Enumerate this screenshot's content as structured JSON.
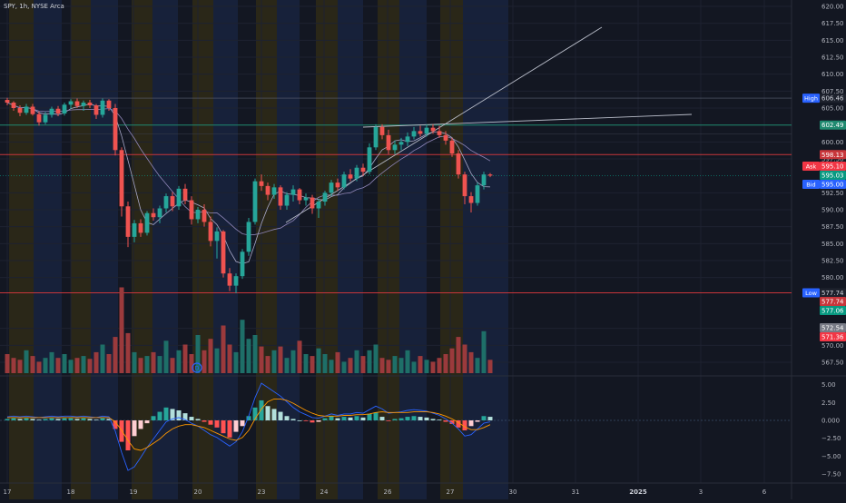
{
  "header": {
    "title": "SPY, 1h, NYSE Arca"
  },
  "colors": {
    "background": "#131722",
    "up": "#26a69a",
    "down": "#ef5350",
    "session_pre": "#2a2718",
    "session_post": "#17213a",
    "ma_fast": "#a8a8c8",
    "ma_slow": "#8f86b8",
    "macd_line": "#2962ff",
    "signal_line": "#ff9800",
    "level_green": "#1f8a70",
    "level_red": "#c8363b"
  },
  "price_axis": {
    "ticks": [
      "620.00",
      "617.50",
      "615.00",
      "612.50",
      "610.00",
      "607.50",
      "605.00",
      "600.00",
      "597.50",
      "592.50",
      "590.00",
      "587.50",
      "585.00",
      "582.50",
      "580.00",
      "572.50",
      "570.00",
      "567.50"
    ]
  },
  "macd_axis": {
    "ticks": [
      "5.00",
      "2.50",
      "0.000",
      "−2.50",
      "−5.00",
      "−7.50"
    ]
  },
  "time_axis": {
    "labels": [
      "17",
      "18",
      "19",
      "20",
      "23",
      "24",
      "26",
      "27",
      "30",
      "31",
      "2025",
      "3",
      "6"
    ]
  },
  "price_labels": [
    {
      "tag": "High",
      "value": "606.46",
      "bg": "#1e222d",
      "color": "#d1d4dc",
      "tag_bg": "#2962ff"
    },
    {
      "tag": "",
      "value": "602.49",
      "bg": "#1f8a70",
      "color": "#ffffff"
    },
    {
      "tag": "",
      "value": "598.13",
      "bg": "#c8363b",
      "color": "#ffffff"
    },
    {
      "tag": "Ask",
      "value": "595.10",
      "bg": "#f23645",
      "color": "#ffffff",
      "tag_bg": "#f23645"
    },
    {
      "tag": "",
      "value": "595.03",
      "bg": "#089981",
      "color": "#ffffff"
    },
    {
      "tag": "Bid",
      "value": "595.00",
      "bg": "#2962ff",
      "color": "#ffffff",
      "tag_bg": "#2962ff"
    },
    {
      "tag": "Low",
      "value": "577.74",
      "bg": "#1e222d",
      "color": "#d1d4dc",
      "tag_bg": "#2962ff"
    },
    {
      "tag": "",
      "value": "577.74",
      "bg": "#c8363b",
      "color": "#ffffff"
    },
    {
      "tag": "",
      "value": "577.06",
      "bg": "#089981",
      "color": "#ffffff"
    },
    {
      "tag": "",
      "value": "572.54",
      "bg": "#787b86",
      "color": "#ffffff"
    },
    {
      "tag": "",
      "value": "571.36",
      "bg": "#f23645",
      "color": "#ffffff"
    }
  ],
  "event_marker": "D",
  "chart_data": {
    "type": "candlestick",
    "symbol": "SPY",
    "interval": "1h",
    "exchange": "NYSE Arca",
    "ylim": [
      565,
      621
    ],
    "current_price": 595.03,
    "high": 606.46,
    "low": 577.74,
    "levels": [
      602.49,
      598.13,
      577.74
    ],
    "candles": [
      [
        606.2,
        606.5,
        605.4,
        605.8
      ],
      [
        605.8,
        606.0,
        604.6,
        605.0
      ],
      [
        605.0,
        605.4,
        603.8,
        604.3
      ],
      [
        604.3,
        605.6,
        604.0,
        605.2
      ],
      [
        605.2,
        605.6,
        603.9,
        604.1
      ],
      [
        604.1,
        604.5,
        602.4,
        602.9
      ],
      [
        602.9,
        604.4,
        602.6,
        604.0
      ],
      [
        604.0,
        605.2,
        603.6,
        604.9
      ],
      [
        604.9,
        605.3,
        603.8,
        604.2
      ],
      [
        604.2,
        605.8,
        603.9,
        605.5
      ],
      [
        605.5,
        606.3,
        604.9,
        606.0
      ],
      [
        606.0,
        606.4,
        605.0,
        605.3
      ],
      [
        605.3,
        606.1,
        604.6,
        605.8
      ],
      [
        605.8,
        606.2,
        605.0,
        605.4
      ],
      [
        605.4,
        605.6,
        603.4,
        604.0
      ],
      [
        604.0,
        606.4,
        603.6,
        606.1
      ],
      [
        606.1,
        606.3,
        604.6,
        605.0
      ],
      [
        605.0,
        605.6,
        598.0,
        598.8
      ],
      [
        598.8,
        599.2,
        589.0,
        590.5
      ],
      [
        590.5,
        591.2,
        584.5,
        586.0
      ],
      [
        586.0,
        588.5,
        585.2,
        588.0
      ],
      [
        588.0,
        588.6,
        586.0,
        586.6
      ],
      [
        586.6,
        589.8,
        586.2,
        589.5
      ],
      [
        589.5,
        590.2,
        588.4,
        588.9
      ],
      [
        588.9,
        590.6,
        588.0,
        590.2
      ],
      [
        590.2,
        592.4,
        589.6,
        592.0
      ],
      [
        592.0,
        592.6,
        589.8,
        590.5
      ],
      [
        590.5,
        593.5,
        590.0,
        593.1
      ],
      [
        593.1,
        593.8,
        590.8,
        591.4
      ],
      [
        591.4,
        592.0,
        587.8,
        588.6
      ],
      [
        588.6,
        590.4,
        588.0,
        590.0
      ],
      [
        590.0,
        590.8,
        587.5,
        588.2
      ],
      [
        588.2,
        589.0,
        584.6,
        585.4
      ],
      [
        585.4,
        587.4,
        582.8,
        586.8
      ],
      [
        586.8,
        587.0,
        580.0,
        580.6
      ],
      [
        580.6,
        581.4,
        578.0,
        578.8
      ],
      [
        578.8,
        580.6,
        577.7,
        580.2
      ],
      [
        580.2,
        584.2,
        579.8,
        583.8
      ],
      [
        583.8,
        588.8,
        583.2,
        588.2
      ],
      [
        588.2,
        594.6,
        587.8,
        594.2
      ],
      [
        594.2,
        595.2,
        592.8,
        593.5
      ],
      [
        593.5,
        594.0,
        591.4,
        592.2
      ],
      [
        592.2,
        593.8,
        591.6,
        593.3
      ],
      [
        593.3,
        593.6,
        590.0,
        590.6
      ],
      [
        590.6,
        592.6,
        590.0,
        592.2
      ],
      [
        592.2,
        593.6,
        591.2,
        593.0
      ],
      [
        593.0,
        593.2,
        590.8,
        591.4
      ],
      [
        591.4,
        592.4,
        590.6,
        591.8
      ],
      [
        591.8,
        592.2,
        589.4,
        590.2
      ],
      [
        590.2,
        591.6,
        588.8,
        591.2
      ],
      [
        591.2,
        592.8,
        590.6,
        592.5
      ],
      [
        592.5,
        594.4,
        592.0,
        594.0
      ],
      [
        594.0,
        594.6,
        592.8,
        593.3
      ],
      [
        593.3,
        595.6,
        593.0,
        595.2
      ],
      [
        595.2,
        596.0,
        594.2,
        594.6
      ],
      [
        594.6,
        596.6,
        594.2,
        596.2
      ],
      [
        596.2,
        596.8,
        595.0,
        595.6
      ],
      [
        595.6,
        599.8,
        595.2,
        599.2
      ],
      [
        599.2,
        602.6,
        598.8,
        602.2
      ],
      [
        602.2,
        602.6,
        600.4,
        601.0
      ],
      [
        601.0,
        601.8,
        598.2,
        598.8
      ],
      [
        598.8,
        600.2,
        598.2,
        599.6
      ],
      [
        599.6,
        600.6,
        598.8,
        600.0
      ],
      [
        600.0,
        601.4,
        599.4,
        600.8
      ],
      [
        600.8,
        602.2,
        600.4,
        601.6
      ],
      [
        601.6,
        602.4,
        600.8,
        601.2
      ],
      [
        601.2,
        602.6,
        600.8,
        602.1
      ],
      [
        602.1,
        602.6,
        601.2,
        601.6
      ],
      [
        601.6,
        602.4,
        600.6,
        601.0
      ],
      [
        601.0,
        601.6,
        599.6,
        600.2
      ],
      [
        600.2,
        600.6,
        597.8,
        598.3
      ],
      [
        598.3,
        598.8,
        594.6,
        595.2
      ],
      [
        595.2,
        595.6,
        590.8,
        592.0
      ],
      [
        592.0,
        592.6,
        589.6,
        591.0
      ],
      [
        591.0,
        594.0,
        590.6,
        593.6
      ],
      [
        593.6,
        595.6,
        593.0,
        595.2
      ],
      [
        595.2,
        595.4,
        594.8,
        595.03
      ]
    ],
    "volume": [
      2.0,
      1.6,
      1.4,
      2.4,
      1.8,
      1.2,
      1.6,
      2.2,
      1.6,
      2.0,
      1.4,
      1.6,
      1.8,
      1.5,
      2.2,
      3.0,
      2.0,
      3.8,
      9.0,
      4.2,
      2.2,
      1.6,
      1.8,
      2.2,
      1.8,
      3.4,
      1.6,
      2.4,
      3.0,
      2.0,
      4.0,
      2.4,
      3.6,
      2.6,
      5.0,
      3.0,
      2.2,
      5.6,
      3.6,
      4.0,
      2.8,
      1.8,
      2.4,
      2.8,
      1.6,
      2.4,
      3.4,
      2.0,
      1.8,
      2.6,
      2.0,
      1.4,
      2.2,
      1.2,
      1.6,
      2.4,
      1.8,
      2.4,
      3.0,
      1.6,
      1.4,
      1.8,
      1.6,
      2.4,
      1.2,
      1.8,
      1.4,
      1.2,
      1.6,
      2.0,
      2.6,
      3.8,
      3.0,
      2.2,
      1.6,
      4.4,
      1.4
    ],
    "macd_hist": [
      0.2,
      0.3,
      0.2,
      0.3,
      0.2,
      0.1,
      0.2,
      0.3,
      0.2,
      0.3,
      0.3,
      0.2,
      0.3,
      0.2,
      0.1,
      0.3,
      0.2,
      -1.2,
      -3.0,
      -4.2,
      -2.2,
      -1.2,
      -0.4,
      0.6,
      1.2,
      1.8,
      1.6,
      1.4,
      1.0,
      0.5,
      0.2,
      -0.2,
      -0.6,
      -1.0,
      -1.8,
      -2.4,
      -1.6,
      -0.8,
      0.6,
      1.8,
      2.8,
      2.0,
      1.6,
      1.2,
      0.6,
      0.2,
      0.0,
      -0.1,
      -0.3,
      -0.2,
      0.3,
      0.6,
      0.3,
      0.5,
      0.4,
      0.6,
      0.4,
      0.9,
      1.1,
      0.5,
      -0.1,
      0.2,
      0.3,
      0.5,
      0.6,
      0.5,
      0.4,
      0.2,
      0.1,
      -0.2,
      -0.5,
      -1.0,
      -1.4,
      -0.8,
      -0.2,
      0.6,
      0.5
    ],
    "macd_line": [
      0.5,
      0.6,
      0.5,
      0.6,
      0.5,
      0.4,
      0.5,
      0.6,
      0.5,
      0.6,
      0.6,
      0.5,
      0.6,
      0.5,
      0.4,
      0.6,
      0.5,
      -1.5,
      -4.5,
      -7.0,
      -6.5,
      -5.2,
      -3.8,
      -2.6,
      -1.4,
      -0.2,
      0.2,
      0.4,
      0.1,
      -0.4,
      -0.8,
      -1.4,
      -2.0,
      -2.4,
      -3.0,
      -3.6,
      -3.0,
      -1.6,
      0.6,
      3.2,
      5.2,
      4.6,
      4.0,
      3.4,
      2.6,
      1.8,
      1.2,
      0.8,
      0.4,
      0.3,
      0.6,
      0.9,
      0.7,
      0.9,
      0.9,
      1.1,
      1.0,
      1.5,
      2.0,
      1.6,
      1.0,
      1.1,
      1.2,
      1.4,
      1.5,
      1.4,
      1.3,
      1.0,
      0.7,
      0.2,
      -0.4,
      -1.2,
      -2.2,
      -2.0,
      -1.2,
      -0.4,
      -0.2
    ],
    "signal_line": [
      0.4,
      0.4,
      0.4,
      0.4,
      0.4,
      0.4,
      0.4,
      0.4,
      0.4,
      0.4,
      0.4,
      0.4,
      0.4,
      0.4,
      0.4,
      0.4,
      0.4,
      -0.2,
      -1.4,
      -2.8,
      -4.0,
      -4.2,
      -3.8,
      -3.2,
      -2.6,
      -1.8,
      -1.2,
      -0.8,
      -0.6,
      -0.6,
      -0.8,
      -1.0,
      -1.4,
      -1.8,
      -2.2,
      -2.6,
      -2.8,
      -2.4,
      -1.4,
      0.2,
      1.6,
      2.6,
      3.0,
      3.0,
      2.8,
      2.4,
      1.9,
      1.4,
      1.0,
      0.7,
      0.6,
      0.6,
      0.6,
      0.7,
      0.7,
      0.8,
      0.8,
      0.9,
      1.1,
      1.2,
      1.1,
      1.1,
      1.1,
      1.1,
      1.2,
      1.2,
      1.2,
      1.1,
      0.9,
      0.6,
      0.2,
      -0.3,
      -0.9,
      -1.3,
      -1.3,
      -1.0,
      -0.6
    ]
  }
}
